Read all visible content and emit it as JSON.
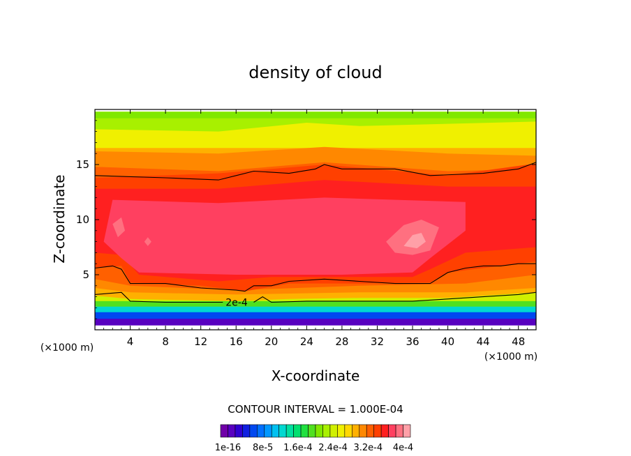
{
  "chart_data": {
    "type": "heatmap",
    "title": "density of cloud",
    "xlabel": "X-coordinate",
    "ylabel": "Z-coordinate",
    "x_unit": "(×1000 m)",
    "y_unit": "(×1000 m)",
    "xlim": [
      0,
      50
    ],
    "ylim": [
      0,
      20
    ],
    "x_ticks": [
      4,
      8,
      12,
      16,
      20,
      24,
      28,
      32,
      36,
      40,
      44,
      48
    ],
    "y_ticks": [
      5,
      10,
      15
    ],
    "contour_interval_text": "CONTOUR INTERVAL = 1.000E-04",
    "contour_label": "2e-4",
    "colorbar": {
      "min": 1e-16,
      "max": 0.0004,
      "tick_labels": [
        "1e-16",
        "8e-5",
        "1.6e-4",
        "2.4e-4",
        "3.2e-4",
        "4e-4"
      ],
      "colors": [
        "#7000a8",
        "#5800c0",
        "#3000d0",
        "#1020e0",
        "#0048f0",
        "#0070ff",
        "#0098ff",
        "#00c0f0",
        "#00d8d0",
        "#00e0a0",
        "#00e070",
        "#20e040",
        "#50e020",
        "#80e800",
        "#a8f000",
        "#d0f000",
        "#f0f000",
        "#ffd800",
        "#ffb000",
        "#ff8800",
        "#ff6000",
        "#ff4000",
        "#ff2020",
        "#ff4060",
        "#ff7080",
        "#ffa0a8"
      ]
    },
    "bands": [
      {
        "level": 1,
        "points": [
          [
            0,
            0.4
          ],
          [
            50,
            0.4
          ],
          [
            50,
            2
          ],
          [
            0,
            2
          ]
        ]
      },
      {
        "level": 4,
        "points": [
          [
            0,
            1.0
          ],
          [
            50,
            1.0
          ],
          [
            50,
            2.2
          ],
          [
            0,
            2.2
          ]
        ]
      },
      {
        "level": 8,
        "points": [
          [
            0,
            1.6
          ],
          [
            50,
            1.6
          ],
          [
            50,
            2.8
          ],
          [
            0,
            2.8
          ]
        ]
      },
      {
        "level": 12,
        "points": [
          [
            0,
            2.1
          ],
          [
            50,
            2.1
          ],
          [
            50,
            3.2
          ],
          [
            0,
            3.2
          ]
        ]
      },
      {
        "level": 15,
        "points": [
          [
            0,
            2.6
          ],
          [
            50,
            2.6
          ],
          [
            50,
            3.6
          ],
          [
            0,
            3.6
          ]
        ]
      },
      {
        "level": 18,
        "points": [
          [
            0,
            3.1
          ],
          [
            4,
            2.8
          ],
          [
            16,
            2.6
          ],
          [
            22,
            2.8
          ],
          [
            30,
            2.9
          ],
          [
            40,
            2.9
          ],
          [
            50,
            3.4
          ],
          [
            50,
            19.8
          ],
          [
            0,
            19.8
          ]
        ]
      },
      {
        "level": 16,
        "points": [
          [
            0,
            16.5
          ],
          [
            50,
            16.5
          ],
          [
            50,
            19.8
          ],
          [
            0,
            19.8
          ]
        ]
      },
      {
        "level": 14,
        "points": [
          [
            0,
            18.2
          ],
          [
            14,
            18.0
          ],
          [
            24,
            18.8
          ],
          [
            30,
            18.5
          ],
          [
            50,
            18.9
          ],
          [
            50,
            19.8
          ],
          [
            0,
            19.8
          ]
        ]
      },
      {
        "level": 13,
        "points": [
          [
            0,
            19.2
          ],
          [
            50,
            19.2
          ],
          [
            50,
            19.8
          ],
          [
            0,
            19.8
          ]
        ]
      },
      {
        "level": 19,
        "points": [
          [
            0,
            3.8
          ],
          [
            4,
            3.4
          ],
          [
            16,
            3.2
          ],
          [
            30,
            3.4
          ],
          [
            42,
            3.4
          ],
          [
            50,
            3.8
          ],
          [
            50,
            15.8
          ],
          [
            40,
            16.0
          ],
          [
            26,
            16.6
          ],
          [
            14,
            16.0
          ],
          [
            0,
            16.2
          ]
        ]
      },
      {
        "level": 20,
        "points": [
          [
            0,
            4.6
          ],
          [
            4,
            4.0
          ],
          [
            16,
            3.6
          ],
          [
            30,
            4.0
          ],
          [
            42,
            4.2
          ],
          [
            50,
            5.0
          ],
          [
            50,
            14.6
          ],
          [
            40,
            14.4
          ],
          [
            26,
            15.2
          ],
          [
            14,
            14.4
          ],
          [
            0,
            14.8
          ]
        ]
      },
      {
        "level": 21,
        "points": [
          [
            0,
            5.6
          ],
          [
            3,
            5.8
          ],
          [
            4,
            4.3
          ],
          [
            12,
            4.0
          ],
          [
            17,
            3.5
          ],
          [
            22,
            4.2
          ],
          [
            30,
            4.2
          ],
          [
            38,
            4.3
          ],
          [
            40,
            5.2
          ],
          [
            50,
            6.2
          ],
          [
            50,
            15.1
          ],
          [
            40,
            14.0
          ],
          [
            26,
            15.0
          ],
          [
            14,
            14.2
          ],
          [
            0,
            13.8
          ]
        ]
      },
      {
        "level": 22,
        "points": [
          [
            0,
            7.0
          ],
          [
            3,
            6.8
          ],
          [
            5,
            5.0
          ],
          [
            14,
            4.4
          ],
          [
            20,
            4.8
          ],
          [
            28,
            4.8
          ],
          [
            36,
            4.8
          ],
          [
            38,
            5.5
          ],
          [
            42,
            7.0
          ],
          [
            50,
            7.5
          ],
          [
            50,
            13.0
          ],
          [
            40,
            13.0
          ],
          [
            26,
            13.6
          ],
          [
            14,
            12.8
          ],
          [
            0,
            12.8
          ]
        ]
      },
      {
        "level": 23,
        "points": [
          [
            1,
            8.0
          ],
          [
            3,
            6.5
          ],
          [
            5,
            5.2
          ],
          [
            16,
            5.0
          ],
          [
            28,
            5.0
          ],
          [
            36,
            5.2
          ],
          [
            38,
            6.5
          ],
          [
            42,
            9.0
          ],
          [
            42,
            11.6
          ],
          [
            26,
            12.0
          ],
          [
            14,
            11.5
          ],
          [
            2,
            11.8
          ]
        ]
      },
      {
        "level": 24,
        "points": [
          [
            33,
            8.0
          ],
          [
            35,
            9.5
          ],
          [
            37,
            10.0
          ],
          [
            39,
            9.3
          ],
          [
            38,
            7.2
          ],
          [
            36,
            6.8
          ],
          [
            34,
            7.0
          ]
        ]
      },
      {
        "level": 25,
        "points": [
          [
            35,
            7.6
          ],
          [
            36,
            8.6
          ],
          [
            37,
            8.8
          ],
          [
            37.5,
            8.0
          ],
          [
            36.5,
            7.4
          ]
        ]
      },
      {
        "level": 24,
        "points": [
          [
            2,
            9.6
          ],
          [
            3,
            10.2
          ],
          [
            3.4,
            9.0
          ],
          [
            2.6,
            8.4
          ]
        ]
      },
      {
        "level": 24,
        "points": [
          [
            5.6,
            8.0
          ],
          [
            6,
            8.4
          ],
          [
            6.4,
            8.0
          ],
          [
            6,
            7.6
          ]
        ]
      }
    ],
    "contours": [
      {
        "value": "",
        "points": [
          [
            0,
            14.0
          ],
          [
            8,
            13.8
          ],
          [
            14,
            13.6
          ],
          [
            16,
            14.0
          ],
          [
            18,
            14.4
          ],
          [
            22,
            14.2
          ],
          [
            25,
            14.6
          ],
          [
            26,
            15.0
          ],
          [
            28,
            14.6
          ],
          [
            34,
            14.6
          ],
          [
            38,
            14.0
          ],
          [
            44,
            14.2
          ],
          [
            48,
            14.6
          ],
          [
            50,
            15.2
          ]
        ]
      },
      {
        "value": "",
        "points": [
          [
            0,
            5.6
          ],
          [
            2,
            5.8
          ],
          [
            3,
            5.5
          ],
          [
            4,
            4.2
          ],
          [
            8,
            4.2
          ],
          [
            12,
            3.8
          ],
          [
            16,
            3.6
          ],
          [
            17,
            3.5
          ],
          [
            18,
            4.0
          ],
          [
            20,
            4.0
          ],
          [
            22,
            4.4
          ],
          [
            26,
            4.6
          ],
          [
            30,
            4.4
          ],
          [
            34,
            4.2
          ],
          [
            38,
            4.2
          ],
          [
            40,
            5.2
          ],
          [
            42,
            5.6
          ],
          [
            44,
            5.8
          ],
          [
            46,
            5.8
          ],
          [
            48,
            6.0
          ],
          [
            50,
            6.0
          ]
        ]
      },
      {
        "value": "2e-4",
        "points": [
          [
            0,
            3.2
          ],
          [
            3,
            3.4
          ],
          [
            4,
            2.6
          ],
          [
            8,
            2.5
          ],
          [
            12,
            2.5
          ],
          [
            14.5,
            2.5
          ]
        ]
      },
      {
        "value": "",
        "points": [
          [
            18,
            2.5
          ],
          [
            19,
            3.0
          ],
          [
            20,
            2.5
          ],
          [
            24,
            2.6
          ],
          [
            30,
            2.6
          ],
          [
            36,
            2.6
          ],
          [
            40,
            2.8
          ],
          [
            44,
            3.0
          ],
          [
            48,
            3.2
          ],
          [
            50,
            3.4
          ]
        ]
      }
    ]
  }
}
